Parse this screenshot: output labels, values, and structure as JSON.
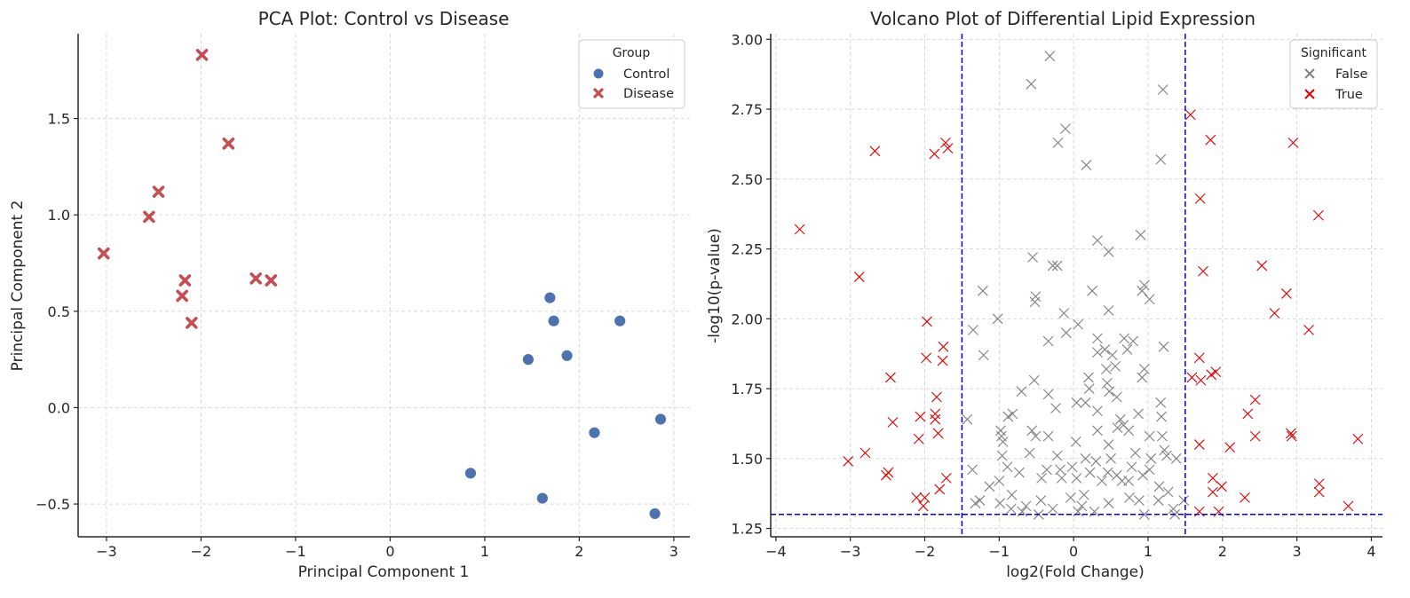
{
  "chart_data": [
    {
      "type": "scatter",
      "title": "PCA Plot: Control vs Disease",
      "xlabel": "Principal Component 1",
      "ylabel": "Principal Component 2",
      "xlim": [
        -3.3,
        3.17
      ],
      "ylim": [
        -0.67,
        1.94
      ],
      "xticks": [
        -3,
        -2,
        -1,
        0,
        1,
        2,
        3
      ],
      "xtick_labels": [
        "−3",
        "−2",
        "−1",
        "0",
        "1",
        "2",
        "3"
      ],
      "yticks": [
        -0.5,
        0.0,
        0.5,
        1.0,
        1.5
      ],
      "ytick_labels": [
        "−0.5",
        "0.0",
        "0.5",
        "1.0",
        "1.5"
      ],
      "grid": true,
      "legend": {
        "title": "Group",
        "position": "top-right"
      },
      "series": [
        {
          "name": "Control",
          "marker": "circle",
          "color": "#4c72b0",
          "points": [
            [
              0.85,
              -0.34
            ],
            [
              1.46,
              0.25
            ],
            [
              1.61,
              -0.47
            ],
            [
              1.69,
              0.57
            ],
            [
              1.73,
              0.45
            ],
            [
              1.87,
              0.27
            ],
            [
              2.16,
              -0.13
            ],
            [
              2.43,
              0.45
            ],
            [
              2.8,
              -0.55
            ],
            [
              2.86,
              -0.06
            ]
          ]
        },
        {
          "name": "Disease",
          "marker": "x",
          "color": "#c44e52",
          "points": [
            [
              -3.03,
              0.8
            ],
            [
              -2.55,
              0.99
            ],
            [
              -2.45,
              1.12
            ],
            [
              -2.2,
              0.58
            ],
            [
              -2.17,
              0.66
            ],
            [
              -2.1,
              0.44
            ],
            [
              -1.99,
              1.83
            ],
            [
              -1.71,
              1.37
            ],
            [
              -1.42,
              0.67
            ],
            [
              -1.26,
              0.66
            ]
          ]
        }
      ]
    },
    {
      "type": "scatter",
      "title": "Volcano Plot of Differential Lipid Expression",
      "xlabel": "log2(Fold Change)",
      "ylabel": "-log10(p-value)",
      "xlim": [
        -4.07,
        4.15
      ],
      "ylim": [
        1.22,
        3.02
      ],
      "xticks": [
        -4,
        -3,
        -2,
        -1,
        0,
        1,
        2,
        3,
        4
      ],
      "xtick_labels": [
        "−4",
        "−3",
        "−2",
        "−1",
        "0",
        "1",
        "2",
        "3",
        "4"
      ],
      "yticks": [
        1.25,
        1.5,
        1.75,
        2.0,
        2.25,
        2.5,
        2.75,
        3.0
      ],
      "ytick_labels": [
        "1.25",
        "1.50",
        "1.75",
        "2.00",
        "2.25",
        "2.50",
        "2.75",
        "3.00"
      ],
      "grid": true,
      "thresholds": {
        "fold_change": [
          -1.5,
          1.5
        ],
        "neg_log10_p": 1.3,
        "line_color": "#0000cc"
      },
      "legend": {
        "title": "Significant",
        "position": "top-right"
      },
      "series": [
        {
          "name": "False",
          "marker": "x",
          "color": "#808080",
          "points": [
            [
              -0.32,
              2.94
            ],
            [
              -0.57,
              2.84
            ],
            [
              1.2,
              2.82
            ],
            [
              -0.11,
              2.68
            ],
            [
              -0.21,
              2.63
            ],
            [
              0.17,
              2.55
            ],
            [
              1.17,
              2.57
            ],
            [
              0.9,
              2.3
            ],
            [
              0.32,
              2.28
            ],
            [
              -0.55,
              2.22
            ],
            [
              -0.22,
              2.19
            ],
            [
              0.47,
              2.24
            ],
            [
              -0.28,
              2.19
            ],
            [
              0.95,
              2.12
            ],
            [
              0.92,
              2.1
            ],
            [
              -0.13,
              2.02
            ],
            [
              -0.51,
              2.08
            ],
            [
              -0.52,
              2.06
            ],
            [
              0.25,
              2.1
            ],
            [
              -1.22,
              2.1
            ],
            [
              1.02,
              2.07
            ],
            [
              0.47,
              2.03
            ],
            [
              -1.02,
              2.0
            ],
            [
              -0.1,
              1.95
            ],
            [
              0.06,
              1.98
            ],
            [
              -1.35,
              1.96
            ],
            [
              -0.34,
              1.92
            ],
            [
              -1.21,
              1.87
            ],
            [
              0.32,
              1.93
            ],
            [
              0.42,
              1.89
            ],
            [
              0.68,
              1.93
            ],
            [
              0.8,
              1.92
            ],
            [
              1.21,
              1.9
            ],
            [
              0.52,
              1.87
            ],
            [
              0.95,
              1.82
            ],
            [
              0.72,
              1.89
            ],
            [
              0.92,
              1.79
            ],
            [
              0.44,
              1.82
            ],
            [
              0.56,
              1.83
            ],
            [
              0.32,
              1.88
            ],
            [
              0.04,
              1.7
            ],
            [
              -0.24,
              1.68
            ],
            [
              0.45,
              1.77
            ],
            [
              0.48,
              1.74
            ],
            [
              0.21,
              1.75
            ],
            [
              0.16,
              1.7
            ],
            [
              0.2,
              1.79
            ],
            [
              0.58,
              1.72
            ],
            [
              0.32,
              1.67
            ],
            [
              1.17,
              1.7
            ],
            [
              1.18,
              1.65
            ],
            [
              0.63,
              1.64
            ],
            [
              -0.53,
              1.78
            ],
            [
              -0.7,
              1.74
            ],
            [
              -0.34,
              1.73
            ],
            [
              -0.82,
              1.66
            ],
            [
              -0.88,
              1.65
            ],
            [
              -1.43,
              1.64
            ],
            [
              -0.97,
              1.58
            ],
            [
              -0.95,
              1.56
            ],
            [
              -0.98,
              1.6
            ],
            [
              -0.56,
              1.6
            ],
            [
              -0.51,
              1.58
            ],
            [
              -0.34,
              1.58
            ],
            [
              0.03,
              1.56
            ],
            [
              0.32,
              1.6
            ],
            [
              0.47,
              1.55
            ],
            [
              0.59,
              1.61
            ],
            [
              0.67,
              1.62
            ],
            [
              0.74,
              1.6
            ],
            [
              0.87,
              1.66
            ],
            [
              1.02,
              1.58
            ],
            [
              1.19,
              1.58
            ],
            [
              1.22,
              1.53
            ],
            [
              1.38,
              1.5
            ],
            [
              -0.96,
              1.51
            ],
            [
              -0.59,
              1.52
            ],
            [
              -0.22,
              1.51
            ],
            [
              0.16,
              1.5
            ],
            [
              0.3,
              1.49
            ],
            [
              0.5,
              1.5
            ],
            [
              0.83,
              1.52
            ],
            [
              1.04,
              1.5
            ],
            [
              1.25,
              1.51
            ],
            [
              -1.36,
              1.46
            ],
            [
              -1.13,
              1.4
            ],
            [
              -1.0,
              1.42
            ],
            [
              -0.89,
              1.47
            ],
            [
              -0.43,
              1.43
            ],
            [
              -0.18,
              1.46
            ],
            [
              0.04,
              1.43
            ],
            [
              0.14,
              1.37
            ],
            [
              0.46,
              1.45
            ],
            [
              0.65,
              1.42
            ],
            [
              0.74,
              1.42
            ],
            [
              1.15,
              1.4
            ],
            [
              1.27,
              1.38
            ],
            [
              -1.26,
              1.35
            ],
            [
              -1.32,
              1.34
            ],
            [
              -0.99,
              1.34
            ],
            [
              -0.84,
              1.32
            ],
            [
              -0.64,
              1.33
            ],
            [
              -0.44,
              1.35
            ],
            [
              -0.28,
              1.32
            ],
            [
              -0.04,
              1.36
            ],
            [
              0.11,
              1.33
            ],
            [
              0.47,
              1.34
            ],
            [
              0.75,
              1.36
            ],
            [
              0.88,
              1.35
            ],
            [
              1.14,
              1.35
            ],
            [
              1.34,
              1.32
            ],
            [
              1.48,
              1.35
            ],
            [
              -0.69,
              1.31
            ],
            [
              -0.47,
              1.3
            ],
            [
              0.28,
              1.31
            ],
            [
              0.06,
              1.31
            ],
            [
              1.36,
              1.3
            ],
            [
              0.95,
              1.3
            ],
            [
              -0.73,
              1.45
            ],
            [
              -0.36,
              1.46
            ],
            [
              -0.16,
              1.43
            ],
            [
              0.22,
              1.45
            ],
            [
              0.58,
              1.44
            ],
            [
              0.78,
              1.47
            ],
            [
              1.02,
              1.46
            ],
            [
              -0.02,
              1.47
            ],
            [
              0.38,
              1.42
            ],
            [
              0.93,
              1.44
            ],
            [
              -0.83,
              1.37
            ]
          ]
        },
        {
          "name": "True",
          "marker": "x",
          "color": "#dd0000",
          "points": [
            [
              -3.68,
              2.32
            ],
            [
              -2.67,
              2.6
            ],
            [
              -1.72,
              2.63
            ],
            [
              -1.69,
              2.61
            ],
            [
              -1.87,
              2.59
            ],
            [
              -2.88,
              2.15
            ],
            [
              -1.97,
              1.99
            ],
            [
              -1.75,
              1.9
            ],
            [
              -1.98,
              1.86
            ],
            [
              -1.76,
              1.85
            ],
            [
              -2.46,
              1.79
            ],
            [
              -1.84,
              1.72
            ],
            [
              -1.86,
              1.66
            ],
            [
              -1.86,
              1.64
            ],
            [
              -2.06,
              1.65
            ],
            [
              -2.43,
              1.63
            ],
            [
              -1.82,
              1.59
            ],
            [
              -2.08,
              1.57
            ],
            [
              -2.8,
              1.52
            ],
            [
              -3.03,
              1.49
            ],
            [
              -2.49,
              1.45
            ],
            [
              -2.52,
              1.44
            ],
            [
              -1.71,
              1.43
            ],
            [
              -1.8,
              1.39
            ],
            [
              -2.11,
              1.36
            ],
            [
              -2.0,
              1.36
            ],
            [
              -2.02,
              1.33
            ],
            [
              1.57,
              2.73
            ],
            [
              1.84,
              2.64
            ],
            [
              2.95,
              2.63
            ],
            [
              1.7,
              2.43
            ],
            [
              3.29,
              2.37
            ],
            [
              1.74,
              2.17
            ],
            [
              2.53,
              2.19
            ],
            [
              2.86,
              2.09
            ],
            [
              2.7,
              2.02
            ],
            [
              3.16,
              1.96
            ],
            [
              1.69,
              1.86
            ],
            [
              1.59,
              1.79
            ],
            [
              1.71,
              1.78
            ],
            [
              1.85,
              1.8
            ],
            [
              1.91,
              1.81
            ],
            [
              2.44,
              1.71
            ],
            [
              2.34,
              1.66
            ],
            [
              2.92,
              1.59
            ],
            [
              2.93,
              1.58
            ],
            [
              2.44,
              1.58
            ],
            [
              3.82,
              1.57
            ],
            [
              1.69,
              1.55
            ],
            [
              2.1,
              1.54
            ],
            [
              1.87,
              1.43
            ],
            [
              1.99,
              1.4
            ],
            [
              3.3,
              1.41
            ],
            [
              3.3,
              1.38
            ],
            [
              2.3,
              1.36
            ],
            [
              1.87,
              1.38
            ],
            [
              3.69,
              1.33
            ],
            [
              1.69,
              1.31
            ],
            [
              1.95,
              1.31
            ]
          ]
        }
      ]
    }
  ]
}
